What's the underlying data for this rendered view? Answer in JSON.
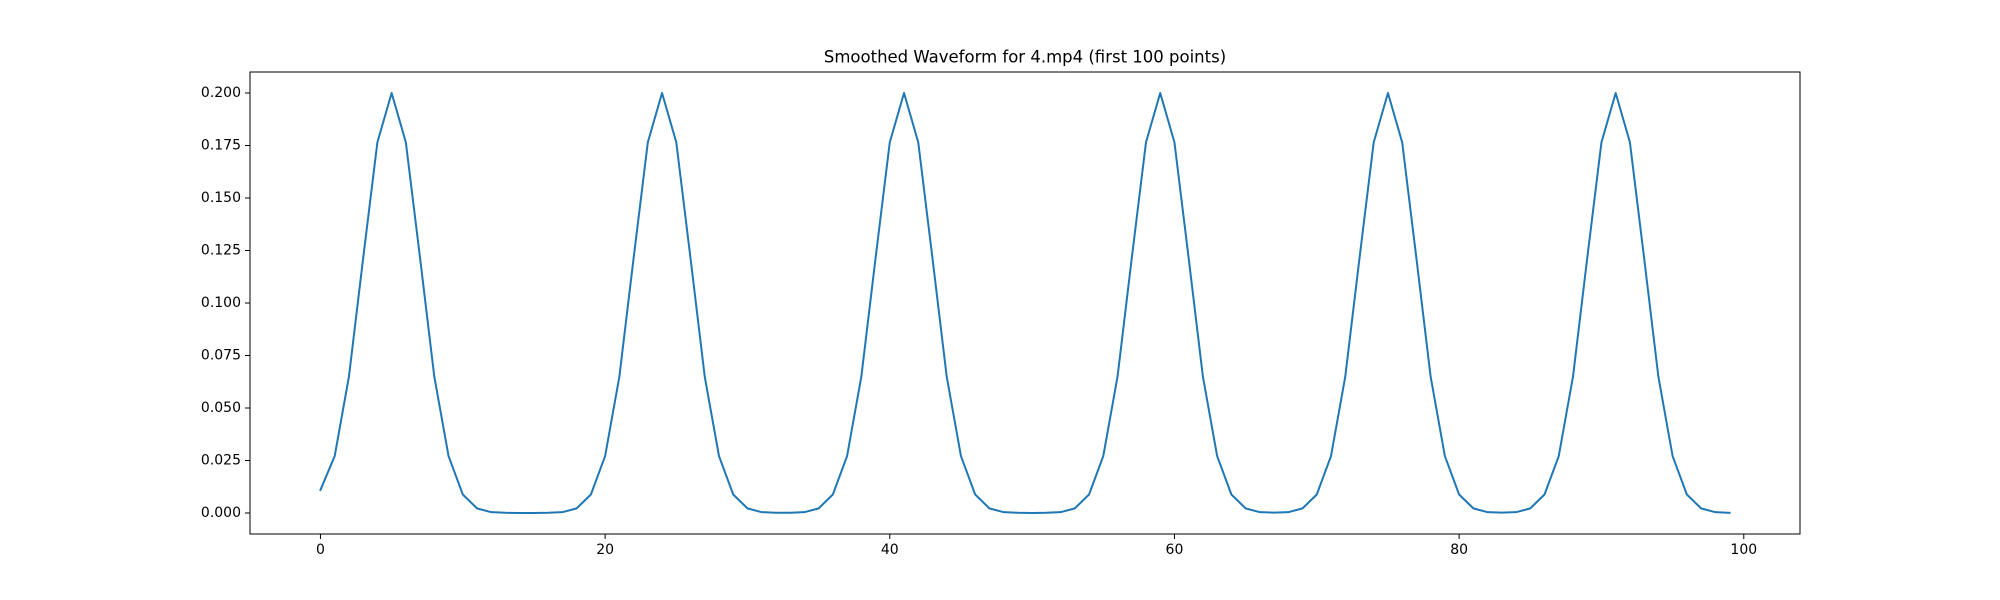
{
  "chart_data": {
    "type": "line",
    "title": "Smoothed Waveform for 4.mp4 (first 100 points)",
    "color": "#1f77b4",
    "x": [
      0,
      1,
      2,
      3,
      4,
      5,
      6,
      7,
      8,
      9,
      10,
      11,
      12,
      13,
      14,
      15,
      16,
      17,
      18,
      19,
      20,
      21,
      22,
      23,
      24,
      25,
      26,
      27,
      28,
      29,
      30,
      31,
      32,
      33,
      34,
      35,
      36,
      37,
      38,
      39,
      40,
      41,
      42,
      43,
      44,
      45,
      46,
      47,
      48,
      49,
      50,
      51,
      52,
      53,
      54,
      55,
      56,
      57,
      58,
      59,
      60,
      61,
      62,
      63,
      64,
      65,
      66,
      67,
      68,
      69,
      70,
      71,
      72,
      73,
      74,
      75,
      76,
      77,
      78,
      79,
      80,
      81,
      82,
      83,
      84,
      85,
      86,
      87,
      88,
      89,
      90,
      91,
      92,
      93,
      94,
      95,
      96,
      97,
      98,
      99
    ],
    "values": [
      0.011,
      0.0271,
      0.0649,
      0.1213,
      0.1765,
      0.2,
      0.1765,
      0.1213,
      0.0649,
      0.0271,
      0.0088,
      0.0022,
      0.0004,
      0.0001,
      0,
      0,
      0.0001,
      0.0004,
      0.0022,
      0.0088,
      0.0271,
      0.0649,
      0.1213,
      0.1765,
      0.2,
      0.1765,
      0.1213,
      0.0649,
      0.0271,
      0.0088,
      0.0022,
      0.0004,
      0.0001,
      0.0001,
      0.0004,
      0.0022,
      0.0088,
      0.0271,
      0.0649,
      0.1213,
      0.1765,
      0.2,
      0.1765,
      0.1213,
      0.0649,
      0.0271,
      0.0088,
      0.0022,
      0.0004,
      0.0001,
      0,
      0.0001,
      0.0004,
      0.0022,
      0.0088,
      0.0271,
      0.0649,
      0.1213,
      0.1765,
      0.2,
      0.1765,
      0.1213,
      0.0649,
      0.0271,
      0.0088,
      0.0022,
      0.0004,
      0.0002,
      0.0004,
      0.0022,
      0.0088,
      0.0271,
      0.0649,
      0.1213,
      0.1765,
      0.2,
      0.1765,
      0.1213,
      0.0649,
      0.0271,
      0.0088,
      0.0022,
      0.0004,
      0.0002,
      0.0004,
      0.0022,
      0.0088,
      0.0271,
      0.0649,
      0.1213,
      0.1765,
      0.2,
      0.1765,
      0.1213,
      0.0649,
      0.0271,
      0.0088,
      0.0022,
      0.0004,
      0.0001
    ],
    "xlim": [
      -4.95,
      103.95
    ],
    "xticks": [
      0,
      20,
      40,
      60,
      80,
      100
    ],
    "ylim": [
      -0.01,
      0.21
    ],
    "yticks": [
      {
        "value": 0,
        "label": "0.000"
      },
      {
        "value": 0.025,
        "label": "0.025"
      },
      {
        "value": 0.05,
        "label": "0.050"
      },
      {
        "value": 0.075,
        "label": "0.075"
      },
      {
        "value": 0.1,
        "label": "0.100"
      },
      {
        "value": 0.125,
        "label": "0.125"
      },
      {
        "value": 0.15,
        "label": "0.150"
      },
      {
        "value": 0.175,
        "label": "0.175"
      },
      {
        "value": 0.2,
        "label": "0.200"
      }
    ],
    "grid": false
  }
}
